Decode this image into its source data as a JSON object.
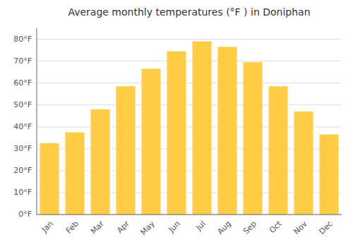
{
  "chart_data": {
    "type": "bar",
    "title": "Average monthly temperatures (°F ) in Doniphan",
    "categories": [
      "Jan",
      "Feb",
      "Mar",
      "Apr",
      "May",
      "Jun",
      "Jul",
      "Aug",
      "Sep",
      "Oct",
      "Nov",
      "Dec"
    ],
    "values": [
      32.5,
      37.5,
      48.0,
      58.5,
      66.5,
      74.5,
      79.0,
      76.5,
      69.5,
      58.5,
      47.0,
      36.5
    ],
    "color": "#FFCC44",
    "ylim": [
      0,
      85
    ],
    "yticks": [
      {
        "value": 0,
        "label": "0°F"
      },
      {
        "value": 10,
        "label": "10°F"
      },
      {
        "value": 20,
        "label": "20°F"
      },
      {
        "value": 30,
        "label": "30°F"
      },
      {
        "value": 40,
        "label": "40°F"
      },
      {
        "value": 50,
        "label": "50°F"
      },
      {
        "value": 60,
        "label": "60°F"
      },
      {
        "value": 70,
        "label": "70°F"
      },
      {
        "value": 80,
        "label": "80°F"
      }
    ],
    "grid": true
  }
}
